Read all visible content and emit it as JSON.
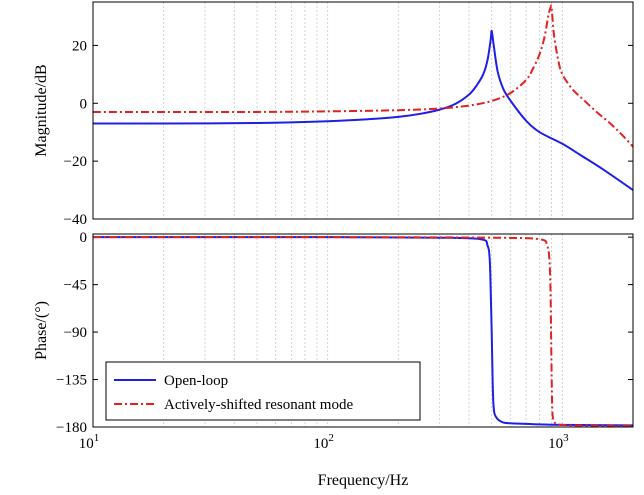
{
  "chart_data": [
    {
      "type": "line",
      "panel": "magnitude",
      "title": "",
      "xlabel": "",
      "ylabel": "Magnitude/dB",
      "xscale": "log",
      "xlim": [
        10,
        2000
      ],
      "ylim": [
        -40,
        35
      ],
      "yticks": [
        "20",
        "0",
        "−20",
        "−40"
      ],
      "grid": true,
      "series": [
        {
          "name": "Open-loop",
          "color": "#1f1fe6",
          "style": "solid",
          "x": [
            10,
            20,
            50,
            100,
            150,
            200,
            250,
            300,
            350,
            400,
            430,
            460,
            480,
            495,
            500,
            510,
            530,
            560,
            600,
            700,
            800,
            1000,
            1200,
            1500,
            2000
          ],
          "y": [
            -7,
            -7,
            -6.8,
            -6.2,
            -5.5,
            -4.7,
            -3.6,
            -2.2,
            -0.2,
            3,
            6,
            10,
            15,
            22,
            25,
            20,
            11,
            5,
            1,
            -6,
            -10,
            -14,
            -18,
            -23,
            -30
          ]
        },
        {
          "name": "Actively-shifted resonant mode",
          "color": "#e61f1f",
          "style": "dashdot",
          "x": [
            10,
            20,
            50,
            100,
            200,
            300,
            400,
            500,
            600,
            700,
            750,
            800,
            840,
            870,
            890,
            900,
            920,
            960,
            1000,
            1100,
            1200,
            1400,
            1600,
            1800,
            2000
          ],
          "y": [
            -3,
            -3,
            -3,
            -2.8,
            -2.4,
            -1.8,
            -0.8,
            0.8,
            3.5,
            8,
            12,
            17,
            23,
            30,
            33,
            33,
            24,
            15,
            10,
            5,
            2,
            -3,
            -7,
            -11,
            -15
          ]
        }
      ]
    },
    {
      "type": "line",
      "panel": "phase",
      "title": "",
      "xlabel": "Frequency/Hz",
      "ylabel": "Phase/(°)",
      "xscale": "log",
      "xlim": [
        10,
        2000
      ],
      "ylim": [
        -180,
        0
      ],
      "yticks": [
        "0",
        "−45",
        "−90",
        "−135",
        "−180"
      ],
      "xticks": [
        {
          "base": "10",
          "exp": "1"
        },
        {
          "base": "10",
          "exp": "2"
        },
        {
          "base": "10",
          "exp": "3"
        }
      ],
      "grid": true,
      "legend": "lower-left",
      "series": [
        {
          "name": "Open-loop",
          "color": "#1f1fe6",
          "style": "solid",
          "x": [
            10,
            100,
            300,
            450,
            480,
            490,
            495,
            500,
            505,
            510,
            520,
            550,
            600,
            800,
            1000,
            2000
          ],
          "y": [
            0,
            0,
            -0.5,
            -2,
            -8,
            -20,
            -50,
            -90,
            -140,
            -162,
            -170,
            -175,
            -176.5,
            -177.5,
            -178,
            -178.5
          ]
        },
        {
          "name": "Actively-shifted resonant mode",
          "color": "#e61f1f",
          "style": "dashdot",
          "x": [
            10,
            100,
            500,
            800,
            860,
            880,
            890,
            895,
            900,
            905,
            910,
            920,
            950,
            1000,
            1200,
            2000
          ],
          "y": [
            0,
            0,
            -0.5,
            -2,
            -8,
            -20,
            -50,
            -90,
            -130,
            -160,
            -170,
            -175,
            -177,
            -178,
            -178.5,
            -179
          ]
        }
      ]
    }
  ]
}
